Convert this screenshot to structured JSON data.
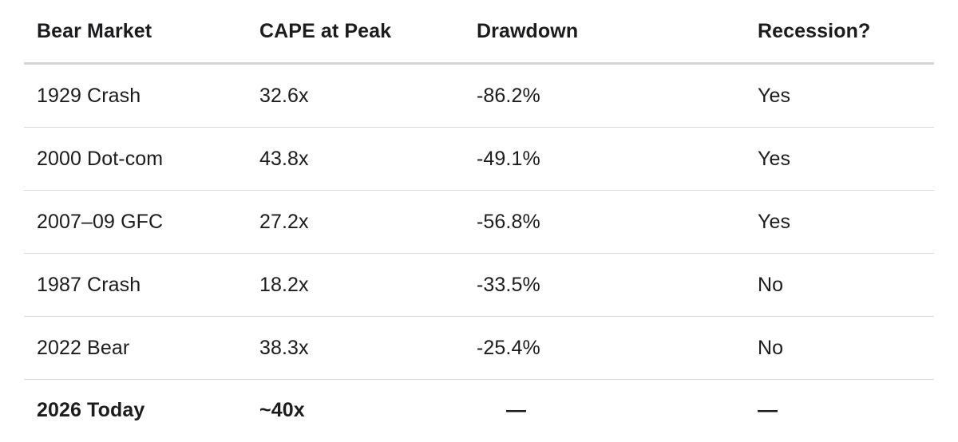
{
  "columns": [
    "Bear Market",
    "CAPE at Peak",
    "Drawdown",
    "Recession?"
  ],
  "rows": [
    [
      "1929 Crash",
      "32.6x",
      "-86.2%",
      "Yes"
    ],
    [
      "2000 Dot-com",
      "43.8x",
      "-49.1%",
      "Yes"
    ],
    [
      "2007–09 GFC",
      "27.2x",
      "-56.8%",
      "Yes"
    ],
    [
      "1987 Crash",
      "18.2x",
      "-33.5%",
      "No"
    ],
    [
      "2022 Bear",
      "38.3x",
      "-25.4%",
      "No"
    ],
    [
      "2026 Today",
      "~40x",
      "—",
      "—"
    ]
  ]
}
